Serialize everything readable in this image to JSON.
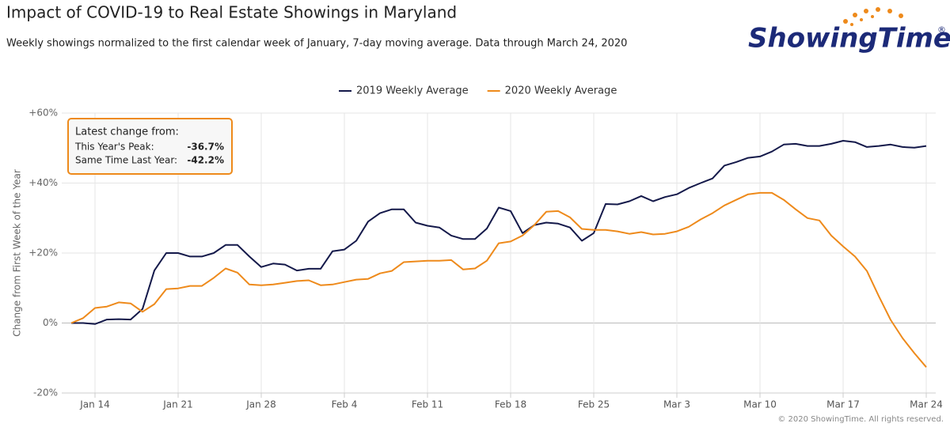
{
  "chart_data": {
    "type": "line",
    "title": "Impact of COVID-19 to Real Estate Showings in Maryland",
    "subtitle": "Weekly showings normalized to the first calendar week of January, 7-day moving average. Data through March 24, 2020",
    "ylabel": "Change from First Week of the Year",
    "logo": "ShowingTime",
    "logo_mark": "®",
    "credit": "© 2020 ShowingTime. All rights reserved.",
    "annotation": {
      "title": "Latest change from:",
      "rows": [
        {
          "label": "This Year's Peak:",
          "value": "-36.7%"
        },
        {
          "label": "Same Time Last Year:",
          "value": "-42.2%"
        }
      ]
    },
    "categories": [
      null,
      null,
      "Jan 14",
      null,
      null,
      null,
      null,
      null,
      null,
      "Jan 21",
      null,
      null,
      null,
      null,
      null,
      null,
      "Jan 28",
      null,
      null,
      null,
      null,
      null,
      null,
      "Feb 4",
      null,
      null,
      null,
      null,
      null,
      null,
      "Feb 11",
      null,
      null,
      null,
      null,
      null,
      null,
      "Feb 18",
      null,
      null,
      null,
      null,
      null,
      null,
      "Feb 25",
      null,
      null,
      null,
      null,
      null,
      null,
      "Mar 3",
      null,
      null,
      null,
      null,
      null,
      null,
      "Mar 10",
      null,
      null,
      null,
      null,
      null,
      null,
      "Mar 17",
      null,
      null,
      null,
      null,
      null,
      null,
      "Mar 24"
    ],
    "series": [
      {
        "name": "2019 Weekly Average",
        "color": "#14194a",
        "values": [
          0,
          0,
          -0.3,
          1,
          1.1,
          1,
          4,
          15,
          20,
          20,
          19,
          19,
          20,
          22.3,
          22.3,
          19,
          16,
          17,
          16.7,
          15,
          15.5,
          15.5,
          20.5,
          21,
          23.5,
          29,
          31.4,
          32.5,
          32.5,
          28.7,
          27.8,
          27.3,
          25,
          24,
          24,
          27,
          33,
          32,
          25.7,
          28,
          28.7,
          28.4,
          27.3,
          23.5,
          25.7,
          34,
          33.9,
          34.8,
          36.3,
          34.8,
          36,
          36.8,
          38.6,
          40,
          41.3,
          45,
          46,
          47.2,
          47.6,
          49,
          51,
          51.2,
          50.6,
          50.6,
          51.2,
          52.1,
          51.7,
          50.3,
          50.6,
          51,
          50.3,
          50.1,
          50.6
        ]
      },
      {
        "name": "2020 Weekly Average",
        "color": "#ee8a1b",
        "values": [
          0,
          1.4,
          4.3,
          4.7,
          5.9,
          5.6,
          3.2,
          5.4,
          9.7,
          9.9,
          10.6,
          10.6,
          12.9,
          15.6,
          14.4,
          11,
          10.8,
          11,
          11.5,
          12,
          12.2,
          10.8,
          11,
          11.7,
          12.4,
          12.6,
          14.2,
          14.9,
          17.4,
          17.6,
          17.8,
          17.8,
          18,
          15.3,
          15.6,
          17.8,
          22.8,
          23.3,
          25,
          28,
          31.8,
          32,
          30.2,
          26.9,
          26.6,
          26.6,
          26.2,
          25.5,
          26,
          25.3,
          25.5,
          26.2,
          27.5,
          29.6,
          31.4,
          33.6,
          35.2,
          36.8,
          37.2,
          37.2,
          35.2,
          32.5,
          30,
          29.3,
          25,
          21.9,
          19,
          14.9,
          7.7,
          0.9,
          -4.3,
          -8.6,
          -12.6
        ]
      }
    ],
    "ylim": [
      -20,
      60
    ],
    "yticks": [
      {
        "value": -20,
        "label": "-20%"
      },
      {
        "value": 0,
        "label": "0%"
      },
      {
        "value": 20,
        "label": "+20%"
      },
      {
        "value": 40,
        "label": "+40%"
      },
      {
        "value": 60,
        "label": "+60%"
      }
    ],
    "grid": true,
    "legend": "top"
  }
}
